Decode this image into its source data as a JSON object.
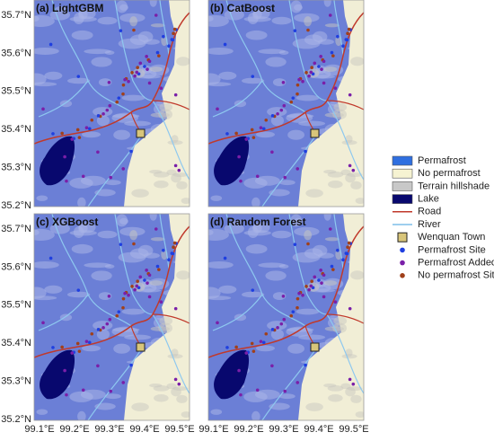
{
  "panels": [
    {
      "title": "(a) LightGBM"
    },
    {
      "title": "(b) CatBoost"
    },
    {
      "title": "(c) XGBoost"
    },
    {
      "title": "(d) Random Forest"
    }
  ],
  "axes": {
    "lat_labels": [
      "35.7°N",
      "35.6°N",
      "35.5°N",
      "35.4°N",
      "35.3°N",
      "35.2°N"
    ],
    "lon_labels": [
      "99.1°E",
      "99.2°E",
      "99.3°E",
      "99.4°E",
      "99.5°E"
    ]
  },
  "legend": [
    {
      "label": "Permafrost"
    },
    {
      "label": "No permafrost"
    },
    {
      "label": "Terrain hillshade"
    },
    {
      "label": "Lake"
    },
    {
      "label": "Road"
    },
    {
      "label": "River"
    },
    {
      "label": "Wenquan Town"
    },
    {
      "label": "Permafrost Site"
    },
    {
      "label": "Permafrost Added"
    },
    {
      "label": "No permafrost Site"
    }
  ]
}
